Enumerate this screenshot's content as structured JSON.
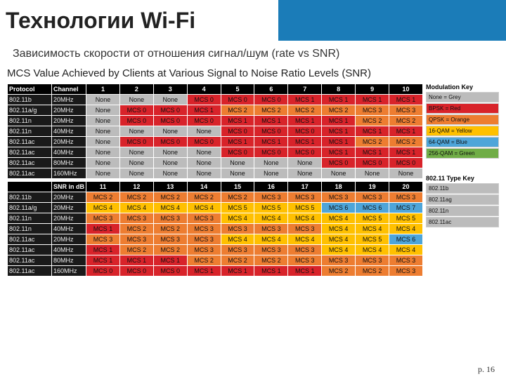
{
  "slide": {
    "title": "Технологии Wi-Fi",
    "subtitle": "Зависимость скорости от отношения сигнал/шум (rate vs SNR)",
    "chart_title": "MCS Value Achieved by Clients at Various Signal to Noise Ratio Levels (SNR)"
  },
  "page_number": "p. 16",
  "colors": {
    "none": "#bcbcbc",
    "bpsk": "#d8232a",
    "qpsk": "#ed7d31",
    "16qam": "#ffc000",
    "64qam": "#4ea5d9",
    "256qam": "#70ad47",
    "hdr_bg": "#000000",
    "dark": "#1a1a1a",
    "legend_border": "#cccccc",
    "text_dark": "#111111"
  },
  "top_header": {
    "left": [
      "Protocol",
      "Channel"
    ],
    "cols": [
      "1",
      "2",
      "3",
      "4",
      "5",
      "6",
      "7",
      "8",
      "9",
      "10"
    ]
  },
  "bottom_header": {
    "left": [
      "",
      "SNR in dB"
    ],
    "cols": [
      "11",
      "12",
      "13",
      "14",
      "15",
      "16",
      "17",
      "18",
      "19",
      "20"
    ]
  },
  "protocols": [
    {
      "p": "802.11b",
      "ch": "20MHz"
    },
    {
      "p": "802.11a/g",
      "ch": "20MHz"
    },
    {
      "p": "802.11n",
      "ch": "20MHz"
    },
    {
      "p": "802.11n",
      "ch": "40MHz"
    },
    {
      "p": "802.11ac",
      "ch": "20MHz"
    },
    {
      "p": "802.11ac",
      "ch": "40MHz"
    },
    {
      "p": "802.11ac",
      "ch": "80MHz"
    },
    {
      "p": "802.11ac",
      "ch": "160MHz"
    }
  ],
  "top_rows": [
    [
      {
        "t": "None",
        "c": "none"
      },
      {
        "t": "None",
        "c": "none"
      },
      {
        "t": "None",
        "c": "none"
      },
      {
        "t": "MCS 0",
        "c": "bpsk"
      },
      {
        "t": "MCS 0",
        "c": "bpsk"
      },
      {
        "t": "MCS 0",
        "c": "bpsk"
      },
      {
        "t": "MCS 1",
        "c": "bpsk"
      },
      {
        "t": "MCS 1",
        "c": "bpsk"
      },
      {
        "t": "MCS 1",
        "c": "bpsk"
      },
      {
        "t": "MCS 1",
        "c": "bpsk"
      }
    ],
    [
      {
        "t": "None",
        "c": "none"
      },
      {
        "t": "MCS 0",
        "c": "bpsk"
      },
      {
        "t": "MCS 0",
        "c": "bpsk"
      },
      {
        "t": "MCS 1",
        "c": "bpsk"
      },
      {
        "t": "MCS 2",
        "c": "qpsk"
      },
      {
        "t": "MCS 2",
        "c": "qpsk"
      },
      {
        "t": "MCS 2",
        "c": "qpsk"
      },
      {
        "t": "MCS 2",
        "c": "qpsk"
      },
      {
        "t": "MCS 3",
        "c": "qpsk"
      },
      {
        "t": "MCS 3",
        "c": "qpsk"
      }
    ],
    [
      {
        "t": "None",
        "c": "none"
      },
      {
        "t": "MCS 0",
        "c": "bpsk"
      },
      {
        "t": "MCS 0",
        "c": "bpsk"
      },
      {
        "t": "MCS 0",
        "c": "bpsk"
      },
      {
        "t": "MCS 1",
        "c": "bpsk"
      },
      {
        "t": "MCS 1",
        "c": "bpsk"
      },
      {
        "t": "MCS 1",
        "c": "bpsk"
      },
      {
        "t": "MCS 1",
        "c": "bpsk"
      },
      {
        "t": "MCS 2",
        "c": "qpsk"
      },
      {
        "t": "MCS 2",
        "c": "qpsk"
      }
    ],
    [
      {
        "t": "None",
        "c": "none"
      },
      {
        "t": "None",
        "c": "none"
      },
      {
        "t": "None",
        "c": "none"
      },
      {
        "t": "None",
        "c": "none"
      },
      {
        "t": "MCS 0",
        "c": "bpsk"
      },
      {
        "t": "MCS 0",
        "c": "bpsk"
      },
      {
        "t": "MCS 0",
        "c": "bpsk"
      },
      {
        "t": "MCS 1",
        "c": "bpsk"
      },
      {
        "t": "MCS 1",
        "c": "bpsk"
      },
      {
        "t": "MCS 1",
        "c": "bpsk"
      }
    ],
    [
      {
        "t": "None",
        "c": "none"
      },
      {
        "t": "MCS 0",
        "c": "bpsk"
      },
      {
        "t": "MCS 0",
        "c": "bpsk"
      },
      {
        "t": "MCS 0",
        "c": "bpsk"
      },
      {
        "t": "MCS 1",
        "c": "bpsk"
      },
      {
        "t": "MCS 1",
        "c": "bpsk"
      },
      {
        "t": "MCS 1",
        "c": "bpsk"
      },
      {
        "t": "MCS 1",
        "c": "bpsk"
      },
      {
        "t": "MCS 2",
        "c": "qpsk"
      },
      {
        "t": "MCS 2",
        "c": "qpsk"
      }
    ],
    [
      {
        "t": "None",
        "c": "none"
      },
      {
        "t": "None",
        "c": "none"
      },
      {
        "t": "None",
        "c": "none"
      },
      {
        "t": "None",
        "c": "none"
      },
      {
        "t": "MCS 0",
        "c": "bpsk"
      },
      {
        "t": "MCS 0",
        "c": "bpsk"
      },
      {
        "t": "MCS 0",
        "c": "bpsk"
      },
      {
        "t": "MCS 1",
        "c": "bpsk"
      },
      {
        "t": "MCS 1",
        "c": "bpsk"
      },
      {
        "t": "MCS 1",
        "c": "bpsk"
      }
    ],
    [
      {
        "t": "None",
        "c": "none"
      },
      {
        "t": "None",
        "c": "none"
      },
      {
        "t": "None",
        "c": "none"
      },
      {
        "t": "None",
        "c": "none"
      },
      {
        "t": "None",
        "c": "none"
      },
      {
        "t": "None",
        "c": "none"
      },
      {
        "t": "None",
        "c": "none"
      },
      {
        "t": "MCS 0",
        "c": "bpsk"
      },
      {
        "t": "MCS 0",
        "c": "bpsk"
      },
      {
        "t": "MCS 0",
        "c": "bpsk"
      }
    ],
    [
      {
        "t": "None",
        "c": "none"
      },
      {
        "t": "None",
        "c": "none"
      },
      {
        "t": "None",
        "c": "none"
      },
      {
        "t": "None",
        "c": "none"
      },
      {
        "t": "None",
        "c": "none"
      },
      {
        "t": "None",
        "c": "none"
      },
      {
        "t": "None",
        "c": "none"
      },
      {
        "t": "None",
        "c": "none"
      },
      {
        "t": "None",
        "c": "none"
      },
      {
        "t": "None",
        "c": "none"
      }
    ]
  ],
  "bottom_rows": [
    [
      {
        "t": "MCS 2",
        "c": "qpsk"
      },
      {
        "t": "MCS 2",
        "c": "qpsk"
      },
      {
        "t": "MCS 2",
        "c": "qpsk"
      },
      {
        "t": "MCS 2",
        "c": "qpsk"
      },
      {
        "t": "MCS 2",
        "c": "qpsk"
      },
      {
        "t": "MCS 3",
        "c": "qpsk"
      },
      {
        "t": "MCS 3",
        "c": "qpsk"
      },
      {
        "t": "MCS 3",
        "c": "qpsk"
      },
      {
        "t": "MCS 3",
        "c": "qpsk"
      },
      {
        "t": "MCS 3",
        "c": "qpsk"
      }
    ],
    [
      {
        "t": "MCS 4",
        "c": "16qam"
      },
      {
        "t": "MCS 4",
        "c": "16qam"
      },
      {
        "t": "MCS 4",
        "c": "16qam"
      },
      {
        "t": "MCS 4",
        "c": "16qam"
      },
      {
        "t": "MCS 5",
        "c": "16qam"
      },
      {
        "t": "MCS 5",
        "c": "16qam"
      },
      {
        "t": "MCS 5",
        "c": "16qam"
      },
      {
        "t": "MCS 6",
        "c": "64qam"
      },
      {
        "t": "MCS 6",
        "c": "64qam"
      },
      {
        "t": "MCS 7",
        "c": "64qam"
      }
    ],
    [
      {
        "t": "MCS 3",
        "c": "qpsk"
      },
      {
        "t": "MCS 3",
        "c": "qpsk"
      },
      {
        "t": "MCS 3",
        "c": "qpsk"
      },
      {
        "t": "MCS 3",
        "c": "qpsk"
      },
      {
        "t": "MCS 4",
        "c": "16qam"
      },
      {
        "t": "MCS 4",
        "c": "16qam"
      },
      {
        "t": "MCS 4",
        "c": "16qam"
      },
      {
        "t": "MCS 4",
        "c": "16qam"
      },
      {
        "t": "MCS 5",
        "c": "16qam"
      },
      {
        "t": "MCS 5",
        "c": "16qam"
      }
    ],
    [
      {
        "t": "MCS 1",
        "c": "bpsk"
      },
      {
        "t": "MCS 2",
        "c": "qpsk"
      },
      {
        "t": "MCS 2",
        "c": "qpsk"
      },
      {
        "t": "MCS 3",
        "c": "qpsk"
      },
      {
        "t": "MCS 3",
        "c": "qpsk"
      },
      {
        "t": "MCS 3",
        "c": "qpsk"
      },
      {
        "t": "MCS 3",
        "c": "qpsk"
      },
      {
        "t": "MCS 4",
        "c": "16qam"
      },
      {
        "t": "MCS 4",
        "c": "16qam"
      },
      {
        "t": "MCS 4",
        "c": "16qam"
      }
    ],
    [
      {
        "t": "MCS 3",
        "c": "qpsk"
      },
      {
        "t": "MCS 3",
        "c": "qpsk"
      },
      {
        "t": "MCS 3",
        "c": "qpsk"
      },
      {
        "t": "MCS 3",
        "c": "qpsk"
      },
      {
        "t": "MCS 4",
        "c": "16qam"
      },
      {
        "t": "MCS 4",
        "c": "16qam"
      },
      {
        "t": "MCS 4",
        "c": "16qam"
      },
      {
        "t": "MCS 4",
        "c": "16qam"
      },
      {
        "t": "MCS 5",
        "c": "16qam"
      },
      {
        "t": "MCS 6",
        "c": "64qam"
      }
    ],
    [
      {
        "t": "MCS 1",
        "c": "bpsk"
      },
      {
        "t": "MCS 2",
        "c": "qpsk"
      },
      {
        "t": "MCS 2",
        "c": "qpsk"
      },
      {
        "t": "MCS 3",
        "c": "qpsk"
      },
      {
        "t": "MCS 3",
        "c": "qpsk"
      },
      {
        "t": "MCS 3",
        "c": "qpsk"
      },
      {
        "t": "MCS 3",
        "c": "qpsk"
      },
      {
        "t": "MCS 4",
        "c": "16qam"
      },
      {
        "t": "MCS 4",
        "c": "16qam"
      },
      {
        "t": "MCS 4",
        "c": "16qam"
      }
    ],
    [
      {
        "t": "MCS 1",
        "c": "bpsk"
      },
      {
        "t": "MCS 1",
        "c": "bpsk"
      },
      {
        "t": "MCS 1",
        "c": "bpsk"
      },
      {
        "t": "MCS 2",
        "c": "qpsk"
      },
      {
        "t": "MCS 2",
        "c": "qpsk"
      },
      {
        "t": "MCS 2",
        "c": "qpsk"
      },
      {
        "t": "MCS 3",
        "c": "qpsk"
      },
      {
        "t": "MCS 3",
        "c": "qpsk"
      },
      {
        "t": "MCS 3",
        "c": "qpsk"
      },
      {
        "t": "MCS 3",
        "c": "qpsk"
      }
    ],
    [
      {
        "t": "MCS 0",
        "c": "bpsk"
      },
      {
        "t": "MCS 0",
        "c": "bpsk"
      },
      {
        "t": "MCS 0",
        "c": "bpsk"
      },
      {
        "t": "MCS 1",
        "c": "bpsk"
      },
      {
        "t": "MCS 1",
        "c": "bpsk"
      },
      {
        "t": "MCS 1",
        "c": "bpsk"
      },
      {
        "t": "MCS 1",
        "c": "bpsk"
      },
      {
        "t": "MCS 2",
        "c": "qpsk"
      },
      {
        "t": "MCS 2",
        "c": "qpsk"
      },
      {
        "t": "MCS 3",
        "c": "qpsk"
      }
    ]
  ],
  "legend_mod": {
    "title": "Modulation Key",
    "items": [
      {
        "t": "None = Grey",
        "c": "none"
      },
      {
        "t": "BPSK = Red",
        "c": "bpsk"
      },
      {
        "t": "QPSK = Orange",
        "c": "qpsk"
      },
      {
        "t": "16-QAM = Yellow",
        "c": "16qam"
      },
      {
        "t": "64-QAM = Blue",
        "c": "64qam"
      },
      {
        "t": "256-QAM = Green",
        "c": "256qam"
      }
    ]
  },
  "legend_type": {
    "title": "802.11 Type Key",
    "items": [
      {
        "t": "802.11b",
        "c": "none"
      },
      {
        "t": "802.11ag",
        "c": "none"
      },
      {
        "t": "802.11n",
        "c": "none"
      },
      {
        "t": "802.11ac",
        "c": "none"
      }
    ]
  }
}
